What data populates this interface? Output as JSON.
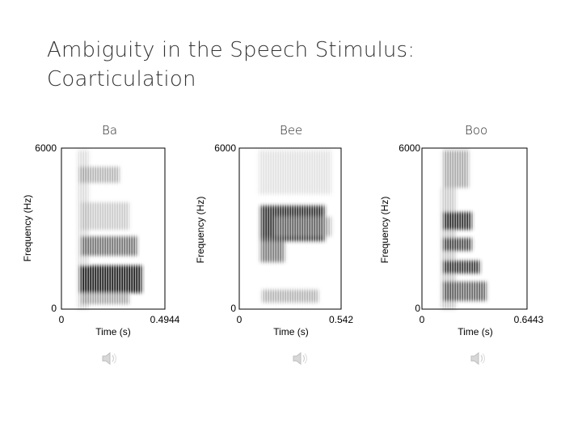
{
  "slide": {
    "title_line1": "Ambiguity in the Speech Stimulus:",
    "title_line2": "Coarticulation"
  },
  "panels": [
    {
      "label": "Ba",
      "y_top": "6000",
      "y_bottom": "0",
      "x_left": "0",
      "x_right": "0.4944",
      "ylabel": "Frequency (Hz)",
      "xlabel": "Time (s)"
    },
    {
      "label": "Bee",
      "y_top": "6000",
      "y_bottom": "0",
      "x_left": "0",
      "x_right": "0.542",
      "ylabel": "Frequency (Hz)",
      "xlabel": "Time (s)"
    },
    {
      "label": "Boo",
      "y_top": "6000",
      "y_bottom": "0",
      "x_left": "0",
      "x_right": "0.6443",
      "ylabel": "Frequency (Hz)",
      "xlabel": "Time (s)"
    }
  ],
  "icons": {
    "audio": "speaker-icon"
  }
}
